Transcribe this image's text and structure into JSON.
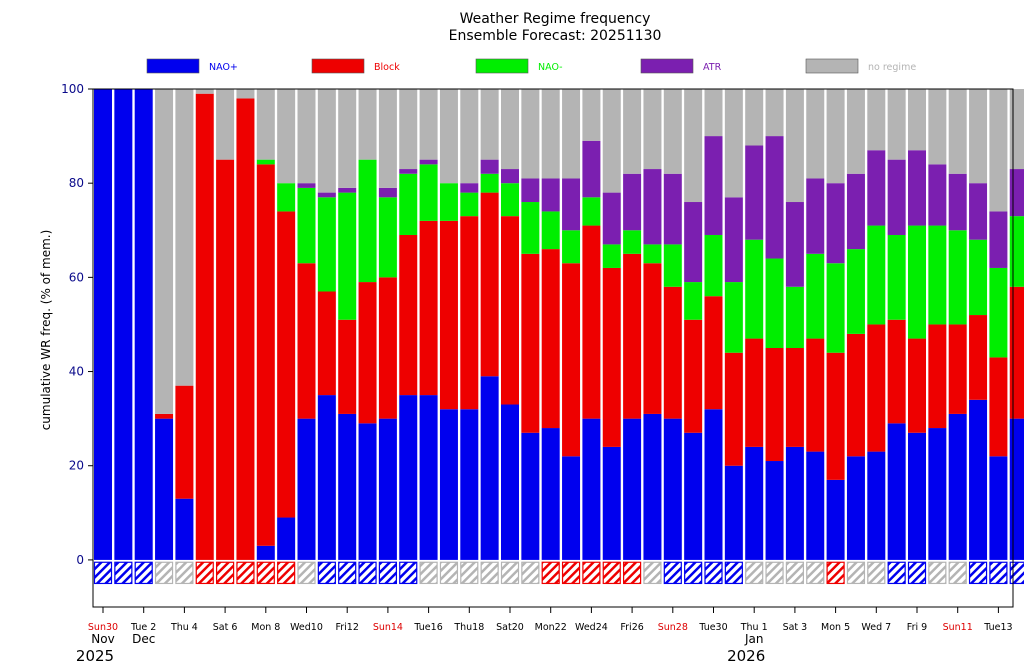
{
  "chart_data": {
    "type": "bar",
    "stacked": true,
    "title": "Weather Regime frequency",
    "subtitle": "Ensemble Forecast: 20251130",
    "ylabel": "cumulative WR freq. (% of mem.)",
    "ylim": [
      -10,
      100
    ],
    "yticks": [
      0,
      20,
      40,
      60,
      80,
      100
    ],
    "grid": false,
    "legend_position": "top",
    "series": [
      {
        "name": "NAO+",
        "color": "#0000ee",
        "values": [
          100,
          100,
          100,
          30,
          13,
          0,
          0,
          0,
          3,
          9,
          30,
          35,
          31,
          29,
          30,
          35,
          35,
          32,
          32,
          39,
          33,
          27,
          28,
          22,
          30,
          24,
          30,
          31,
          30,
          27,
          32,
          20,
          24,
          21,
          24,
          23,
          17,
          22,
          23,
          29,
          27,
          28,
          31,
          34,
          22,
          30
        ]
      },
      {
        "name": "Block",
        "color": "#ee0000",
        "values": [
          0,
          0,
          0,
          1,
          24,
          99,
          85,
          98,
          81,
          65,
          33,
          22,
          20,
          30,
          30,
          34,
          37,
          40,
          41,
          39,
          40,
          38,
          38,
          41,
          41,
          38,
          35,
          32,
          28,
          24,
          24,
          24,
          23,
          24,
          21,
          24,
          27,
          26,
          27,
          22,
          20,
          22,
          19,
          18,
          21,
          28
        ]
      },
      {
        "name": "NAO-",
        "color": "#00ee00",
        "values": [
          0,
          0,
          0,
          0,
          0,
          0,
          0,
          0,
          1,
          6,
          16,
          20,
          27,
          26,
          17,
          13,
          12,
          8,
          5,
          4,
          7,
          11,
          8,
          7,
          6,
          5,
          5,
          4,
          9,
          8,
          13,
          15,
          21,
          19,
          13,
          18,
          19,
          18,
          21,
          18,
          24,
          21,
          20,
          16,
          19,
          15
        ]
      },
      {
        "name": "ATR",
        "color": "#7b1fb0",
        "values": [
          0,
          0,
          0,
          0,
          0,
          0,
          0,
          0,
          0,
          0,
          1,
          1,
          1,
          0,
          2,
          1,
          1,
          0,
          2,
          3,
          3,
          5,
          7,
          11,
          12,
          11,
          12,
          16,
          15,
          17,
          21,
          18,
          20,
          26,
          18,
          16,
          17,
          16,
          16,
          16,
          16,
          13,
          12,
          12,
          12,
          10
        ]
      },
      {
        "name": "no regime",
        "color": "#b4b4b4",
        "values": [
          0,
          0,
          0,
          69,
          63,
          1,
          15,
          2,
          15,
          20,
          20,
          22,
          21,
          15,
          21,
          17,
          15,
          20,
          20,
          15,
          17,
          19,
          19,
          19,
          11,
          22,
          18,
          17,
          18,
          24,
          10,
          23,
          12,
          10,
          24,
          19,
          20,
          18,
          13,
          15,
          13,
          16,
          18,
          20,
          26,
          17
        ]
      }
    ],
    "day_markers": [
      "NAO+",
      "NAO+",
      "NAO+",
      "no regime",
      "no regime",
      "Block",
      "Block",
      "Block",
      "Block",
      "Block",
      "no regime",
      "NAO+",
      "NAO+",
      "NAO+",
      "NAO+",
      "NAO+",
      "no regime",
      "no regime",
      "no regime",
      "no regime",
      "no regime",
      "no regime",
      "Block",
      "Block",
      "Block",
      "Block",
      "Block",
      "no regime",
      "NAO+",
      "NAO+",
      "NAO+",
      "NAO+",
      "no regime",
      "no regime",
      "no regime",
      "no regime",
      "Block",
      "no regime",
      "no regime",
      "NAO+",
      "NAO+",
      "no regime",
      "no regime",
      "NAO+",
      "NAO+",
      "NAO+"
    ],
    "x_labels": [
      {
        "index": 0,
        "text": "Sun30",
        "color": "#dd0000"
      },
      {
        "index": 2,
        "text": "Tue 2",
        "color": "#000000"
      },
      {
        "index": 4,
        "text": "Thu 4",
        "color": "#000000"
      },
      {
        "index": 6,
        "text": "Sat 6",
        "color": "#000000"
      },
      {
        "index": 8,
        "text": "Mon 8",
        "color": "#000000"
      },
      {
        "index": 10,
        "text": "Wed10",
        "color": "#000000"
      },
      {
        "index": 12,
        "text": "Fri12",
        "color": "#000000"
      },
      {
        "index": 14,
        "text": "Sun14",
        "color": "#dd0000"
      },
      {
        "index": 16,
        "text": "Tue16",
        "color": "#000000"
      },
      {
        "index": 18,
        "text": "Thu18",
        "color": "#000000"
      },
      {
        "index": 20,
        "text": "Sat20",
        "color": "#000000"
      },
      {
        "index": 22,
        "text": "Mon22",
        "color": "#000000"
      },
      {
        "index": 24,
        "text": "Wed24",
        "color": "#000000"
      },
      {
        "index": 26,
        "text": "Fri26",
        "color": "#000000"
      },
      {
        "index": 28,
        "text": "Sun28",
        "color": "#dd0000"
      },
      {
        "index": 30,
        "text": "Tue30",
        "color": "#000000"
      },
      {
        "index": 32,
        "text": "Thu 1",
        "color": "#000000"
      },
      {
        "index": 34,
        "text": "Sat 3",
        "color": "#000000"
      },
      {
        "index": 36,
        "text": "Mon 5",
        "color": "#000000"
      },
      {
        "index": 38,
        "text": "Wed 7",
        "color": "#000000"
      },
      {
        "index": 40,
        "text": "Fri 9",
        "color": "#000000"
      },
      {
        "index": 42,
        "text": "Sun11",
        "color": "#dd0000"
      },
      {
        "index": 44,
        "text": "Tue13",
        "color": "#000000"
      }
    ],
    "month_labels": [
      {
        "index": 0,
        "text": "Nov"
      },
      {
        "index": 2,
        "text": "Dec"
      },
      {
        "index": 32,
        "text": "Jan"
      }
    ],
    "year_labels": [
      {
        "index": 0,
        "text": "2025"
      },
      {
        "index": 32,
        "text": "2026"
      }
    ]
  }
}
